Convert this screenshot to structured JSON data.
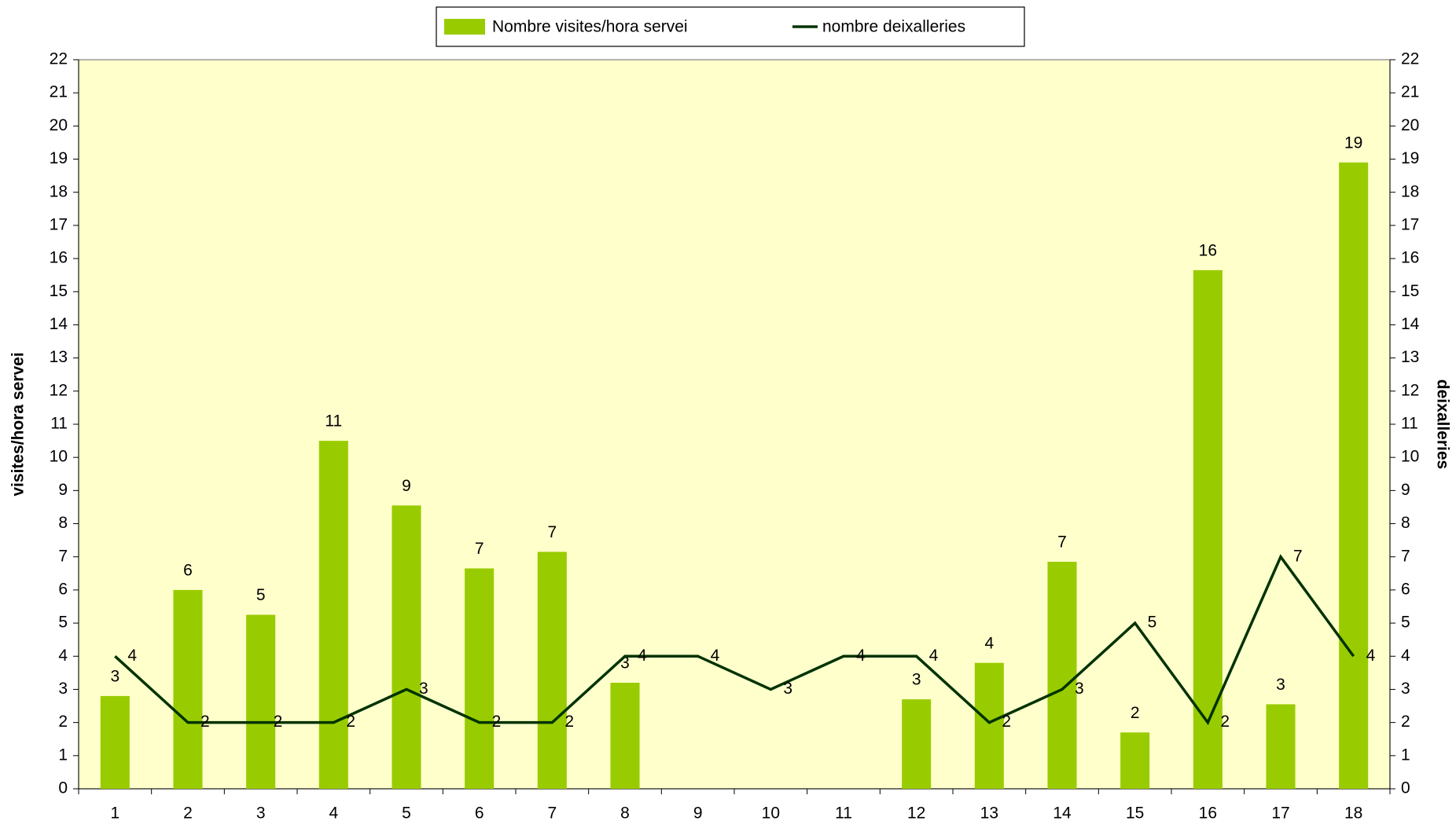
{
  "chart_data": {
    "type": "combo",
    "categories": [
      "1",
      "2",
      "3",
      "4",
      "5",
      "6",
      "7",
      "8",
      "9",
      "10",
      "11",
      "12",
      "13",
      "14",
      "15",
      "16",
      "17",
      "18"
    ],
    "series": [
      {
        "name": "Nombre visites/hora servei",
        "type": "bar",
        "color": "#99cc00",
        "values": [
          2.8,
          6.0,
          5.25,
          10.5,
          8.55,
          6.65,
          7.15,
          3.2,
          null,
          null,
          null,
          2.7,
          3.8,
          6.85,
          1.7,
          15.65,
          2.55,
          18.9
        ],
        "value_labels": [
          "3",
          "6",
          "5",
          "11",
          "9",
          "7",
          "7",
          "3",
          null,
          null,
          null,
          "3",
          "4",
          "7",
          "2",
          "16",
          "3",
          "19"
        ]
      },
      {
        "name": "nombre deixalleries",
        "type": "line",
        "axis": "y2",
        "color": "#003300",
        "values": [
          4,
          2,
          2,
          2,
          3,
          2,
          2,
          4,
          4,
          3,
          4,
          4,
          2,
          3,
          5,
          2,
          7,
          4
        ]
      }
    ],
    "ylabel": "visites/hora servei",
    "y2label": "deixalleries",
    "ylim": [
      0,
      22
    ],
    "yticks": [
      0,
      1,
      2,
      3,
      4,
      5,
      6,
      7,
      8,
      9,
      10,
      11,
      12,
      13,
      14,
      15,
      16,
      17,
      18,
      19,
      20,
      21,
      22
    ],
    "y2lim": [
      0,
      22
    ],
    "y2ticks": [
      0,
      1,
      2,
      3,
      4,
      5,
      6,
      7,
      8,
      9,
      10,
      11,
      12,
      13,
      14,
      15,
      16,
      17,
      18,
      19,
      20,
      21,
      22
    ],
    "legend": "top",
    "plot_background": "#ffffcc"
  }
}
